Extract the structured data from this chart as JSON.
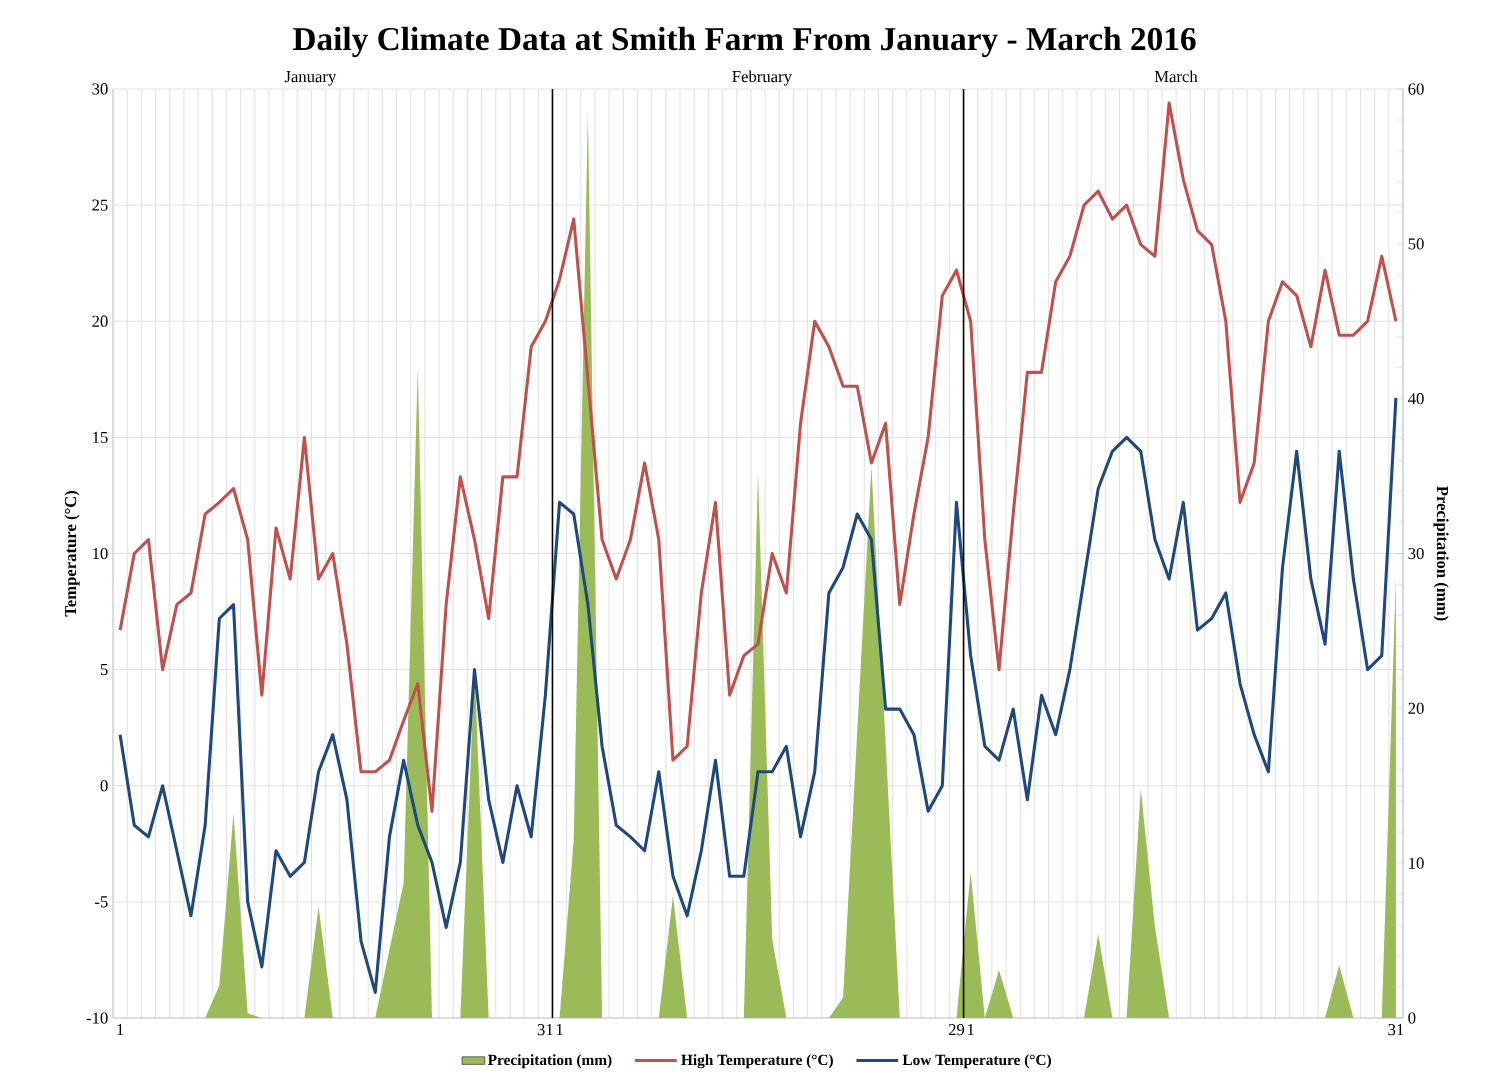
{
  "chart_data": {
    "type": "line",
    "title": "Daily Climate Data at Smith Farm From January - March 2016",
    "ylabel": "Temperature (°C)",
    "y2label": "Precipitation (mm)",
    "annotations": [
      "January",
      "February",
      "March"
    ],
    "x": [
      "2016-01-01",
      "2016-01-02",
      "2016-01-03",
      "2016-01-04",
      "2016-01-05",
      "2016-01-06",
      "2016-01-07",
      "2016-01-08",
      "2016-01-09",
      "2016-01-10",
      "2016-01-11",
      "2016-01-12",
      "2016-01-13",
      "2016-01-14",
      "2016-01-15",
      "2016-01-16",
      "2016-01-17",
      "2016-01-18",
      "2016-01-19",
      "2016-01-20",
      "2016-01-21",
      "2016-01-22",
      "2016-01-23",
      "2016-01-24",
      "2016-01-25",
      "2016-01-26",
      "2016-01-27",
      "2016-01-28",
      "2016-01-29",
      "2016-01-30",
      "2016-01-31",
      "2016-02-01",
      "2016-02-02",
      "2016-02-03",
      "2016-02-04",
      "2016-02-05",
      "2016-02-06",
      "2016-02-07",
      "2016-02-08",
      "2016-02-09",
      "2016-02-10",
      "2016-02-11",
      "2016-02-12",
      "2016-02-13",
      "2016-02-14",
      "2016-02-15",
      "2016-02-16",
      "2016-02-17",
      "2016-02-18",
      "2016-02-19",
      "2016-02-20",
      "2016-02-21",
      "2016-02-22",
      "2016-02-23",
      "2016-02-24",
      "2016-02-25",
      "2016-02-26",
      "2016-02-27",
      "2016-02-28",
      "2016-02-29",
      "2016-03-01",
      "2016-03-02",
      "2016-03-03",
      "2016-03-04",
      "2016-03-05",
      "2016-03-06",
      "2016-03-07",
      "2016-03-08",
      "2016-03-09",
      "2016-03-10",
      "2016-03-11",
      "2016-03-12",
      "2016-03-13",
      "2016-03-14",
      "2016-03-15",
      "2016-03-16",
      "2016-03-17",
      "2016-03-18",
      "2016-03-19",
      "2016-03-20",
      "2016-03-21",
      "2016-03-22",
      "2016-03-23",
      "2016-03-24",
      "2016-03-25",
      "2016-03-26",
      "2016-03-27",
      "2016-03-28",
      "2016-03-29",
      "2016-03-30",
      "2016-03-31"
    ],
    "xlim": [
      "2015-12-31T12:00",
      "2016-03-31T12:00"
    ],
    "xticks": [
      {
        "value": "2016-01-01",
        "label": "1"
      },
      {
        "value": "2016-01-31",
        "label": "31"
      },
      {
        "value": "2016-02-01",
        "label": "1"
      },
      {
        "value": "2016-02-29",
        "label": "29"
      },
      {
        "value": "2016-03-01",
        "label": "1"
      },
      {
        "value": "2016-03-31",
        "label": "31"
      }
    ],
    "ylim": [
      -10,
      30
    ],
    "yticks": [
      -10,
      -5,
      0,
      5,
      10,
      15,
      20,
      25,
      30
    ],
    "y2lim": [
      0,
      60
    ],
    "y2ticks": [
      0,
      10,
      20,
      30,
      40,
      50,
      60
    ],
    "grid": true,
    "legend": "bottom",
    "ref_lines": [
      {
        "axis": "x",
        "value": "2016-01-31T12:00",
        "color": "#000000"
      },
      {
        "axis": "x",
        "value": "2016-02-29T12:00",
        "color": "#000000"
      }
    ],
    "series": [
      {
        "name": "Precipitation (mm)",
        "type": "area",
        "axis": "y2",
        "color": "#9bbb59",
        "values": [
          0,
          0,
          0,
          0,
          0,
          0,
          0,
          2.1,
          13.2,
          0.3,
          0,
          0,
          0,
          0,
          7.2,
          0,
          0,
          0,
          0,
          4.4,
          8.7,
          42.0,
          0,
          0,
          0,
          22.6,
          0,
          0,
          0,
          0,
          0,
          0,
          11.5,
          58.5,
          0,
          0,
          0,
          0,
          0,
          7.9,
          0,
          0,
          0,
          0,
          0,
          35.2,
          5.1,
          0,
          0,
          0,
          0,
          1.3,
          18.5,
          35.6,
          17.8,
          0,
          0,
          0,
          0,
          0,
          9.4,
          0,
          3.1,
          0,
          0,
          0,
          0,
          0,
          0,
          5.4,
          0,
          0,
          14.8,
          5.9,
          0,
          0,
          0,
          0,
          0,
          0,
          0,
          0,
          0,
          0,
          0,
          0,
          3.4,
          0,
          0,
          0,
          28.5
        ]
      },
      {
        "name": "High Temperature (°C)",
        "color": "#c0504d",
        "values": [
          6.7,
          10.0,
          10.6,
          5.0,
          7.8,
          8.3,
          11.7,
          12.2,
          12.8,
          10.6,
          3.9,
          11.1,
          8.9,
          15.0,
          8.9,
          10.0,
          6.1,
          0.6,
          0.6,
          1.1,
          2.8,
          4.4,
          -1.1,
          7.8,
          13.3,
          10.6,
          7.2,
          13.3,
          13.3,
          18.9,
          20.0,
          21.8,
          24.4,
          17.5,
          10.6,
          8.9,
          10.6,
          13.9,
          10.6,
          1.1,
          1.7,
          8.3,
          12.2,
          3.9,
          5.6,
          6.1,
          10.0,
          8.3,
          15.6,
          20.0,
          18.9,
          17.2,
          17.2,
          13.9,
          15.6,
          7.8,
          11.7,
          15.0,
          21.1,
          22.2,
          20.0,
          10.6,
          5.0,
          11.7,
          17.8,
          17.8,
          21.7,
          22.8,
          25.0,
          25.6,
          24.4,
          25.0,
          23.3,
          22.8,
          29.4,
          26.1,
          23.9,
          23.3,
          20.0,
          12.2,
          13.9,
          20.0,
          21.7,
          21.1,
          18.9,
          22.2,
          19.4,
          19.4,
          20.0,
          22.8,
          20.0
        ]
      },
      {
        "name": "Low Temperature (°C)",
        "color": "#1f497d",
        "values": [
          2.2,
          -1.7,
          -2.2,
          0.0,
          -2.8,
          -5.6,
          -1.7,
          7.2,
          7.8,
          -5.0,
          -7.8,
          -2.8,
          -3.9,
          -3.3,
          0.6,
          2.2,
          -0.6,
          -6.7,
          -8.9,
          -2.2,
          1.1,
          -1.7,
          -3.3,
          -6.1,
          -3.3,
          5.0,
          -0.6,
          -3.3,
          0.0,
          -2.2,
          3.9,
          12.2,
          11.7,
          7.8,
          1.7,
          -1.7,
          -2.2,
          -2.8,
          0.6,
          -3.9,
          -5.6,
          -2.8,
          1.1,
          -3.9,
          -3.9,
          0.6,
          0.6,
          1.7,
          -2.2,
          0.6,
          8.3,
          9.4,
          11.7,
          10.6,
          3.3,
          3.3,
          2.2,
          -1.1,
          0.0,
          12.2,
          5.6,
          1.7,
          1.1,
          3.3,
          -0.6,
          3.9,
          2.2,
          5.0,
          8.9,
          12.8,
          14.4,
          15.0,
          14.4,
          10.6,
          8.9,
          12.2,
          6.7,
          7.2,
          8.3,
          4.4,
          2.2,
          0.6,
          9.4,
          14.4,
          8.9,
          6.1,
          14.4,
          8.9,
          5.0,
          5.6,
          16.7
        ]
      }
    ]
  }
}
